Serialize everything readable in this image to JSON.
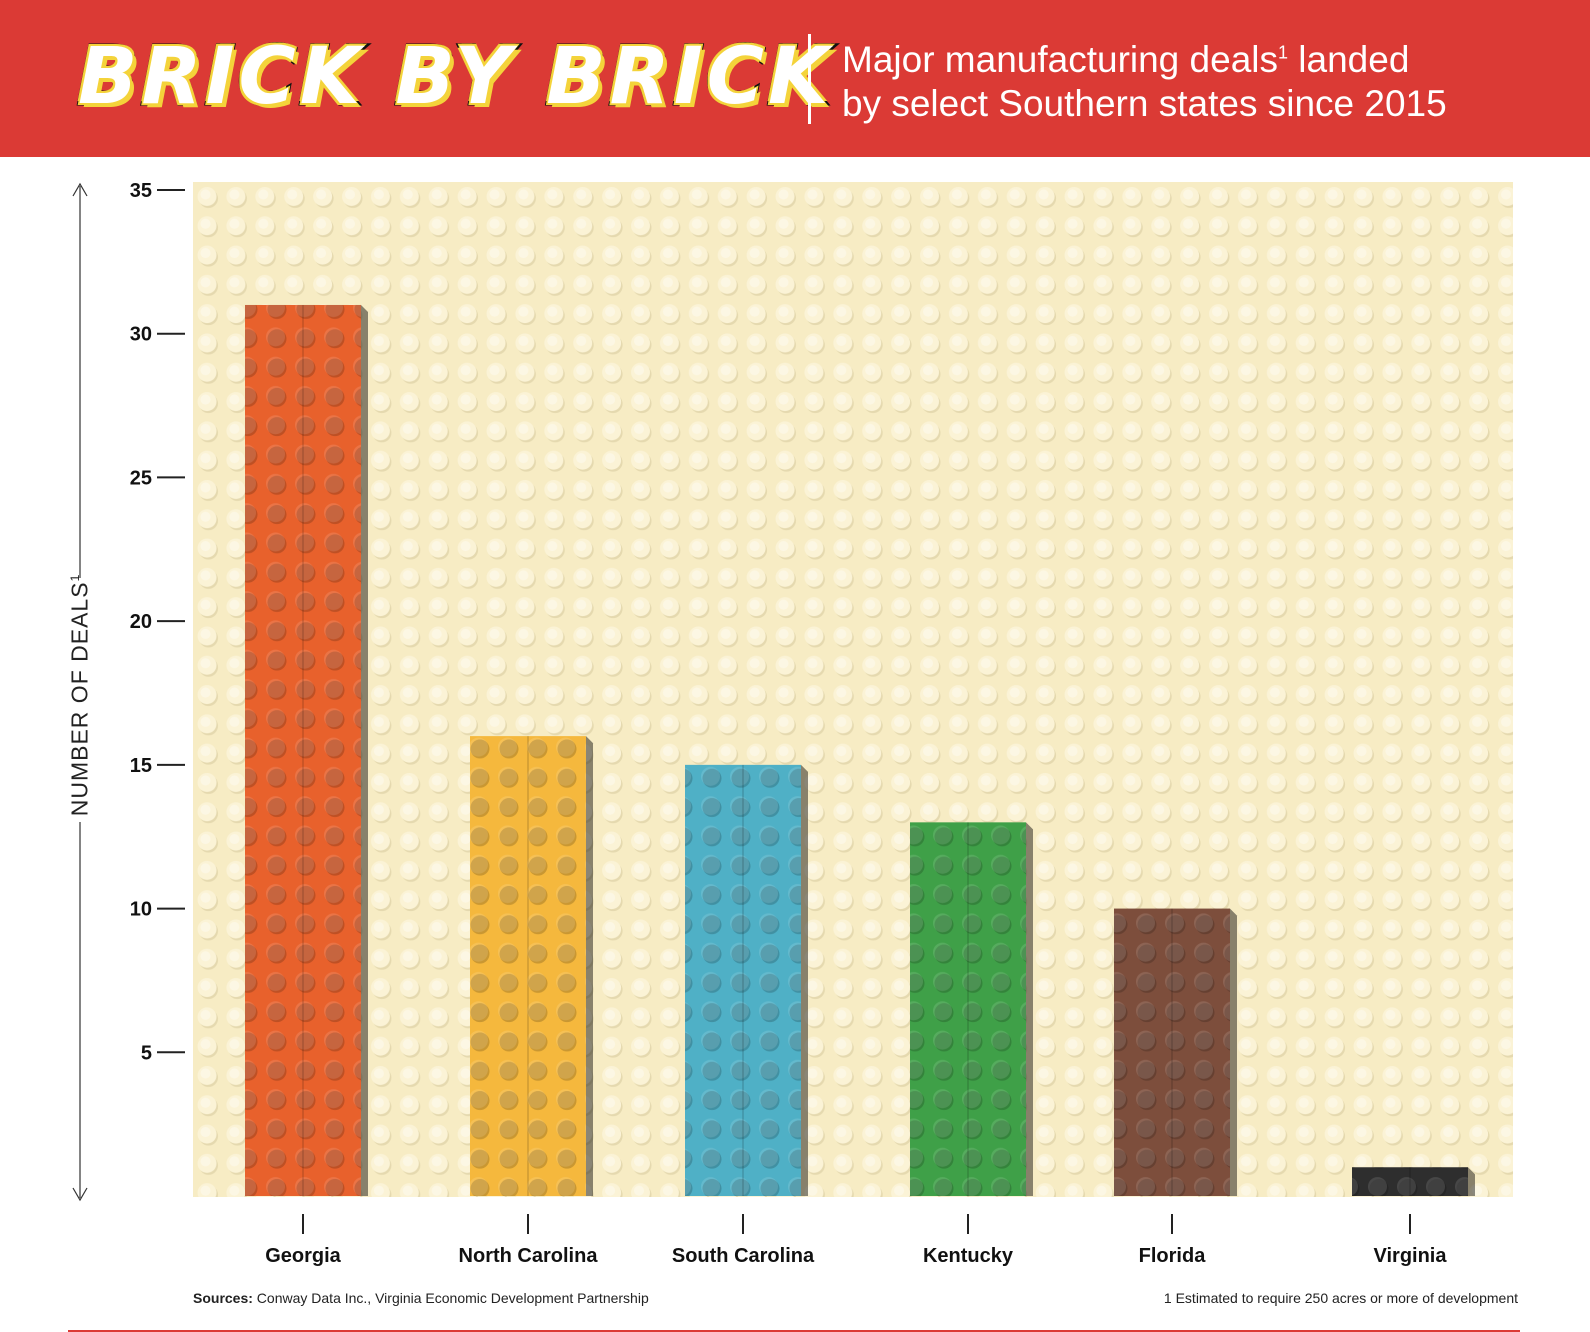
{
  "header": {
    "title": "BRICK BY BRICK",
    "subtitle_line1_pre": "Major manufacturing deals",
    "subtitle_sup": "1",
    "subtitle_line1_post": " landed",
    "subtitle_line2": "by select Southern states since 2015"
  },
  "colors": {
    "banner": "#db3a35",
    "baseplate": "#f7ecc4",
    "stud": "#fbf3d6"
  },
  "chart_data": {
    "type": "bar",
    "ylabel": "NUMBER OF DEALS",
    "ylabel_sup": "1",
    "ylim": [
      0,
      35
    ],
    "yticks": [
      5,
      10,
      15,
      20,
      25,
      30,
      35
    ],
    "grid": false,
    "categories": [
      "Georgia",
      "North Carolina",
      "South Carolina",
      "Kentucky",
      "Florida",
      "Virginia"
    ],
    "values": [
      31,
      16,
      15,
      13,
      10,
      1
    ],
    "bar_colors": [
      "#e8612c",
      "#f5b83d",
      "#4fb0c6",
      "#3fa048",
      "#7d4e3c",
      "#2e2e2e"
    ]
  },
  "footer": {
    "sources_label": "Sources:",
    "sources_text": " Conway Data Inc., Virginia Economic Development Partnership",
    "footnote": "1 Estimated to require 250 acres or more of development"
  }
}
